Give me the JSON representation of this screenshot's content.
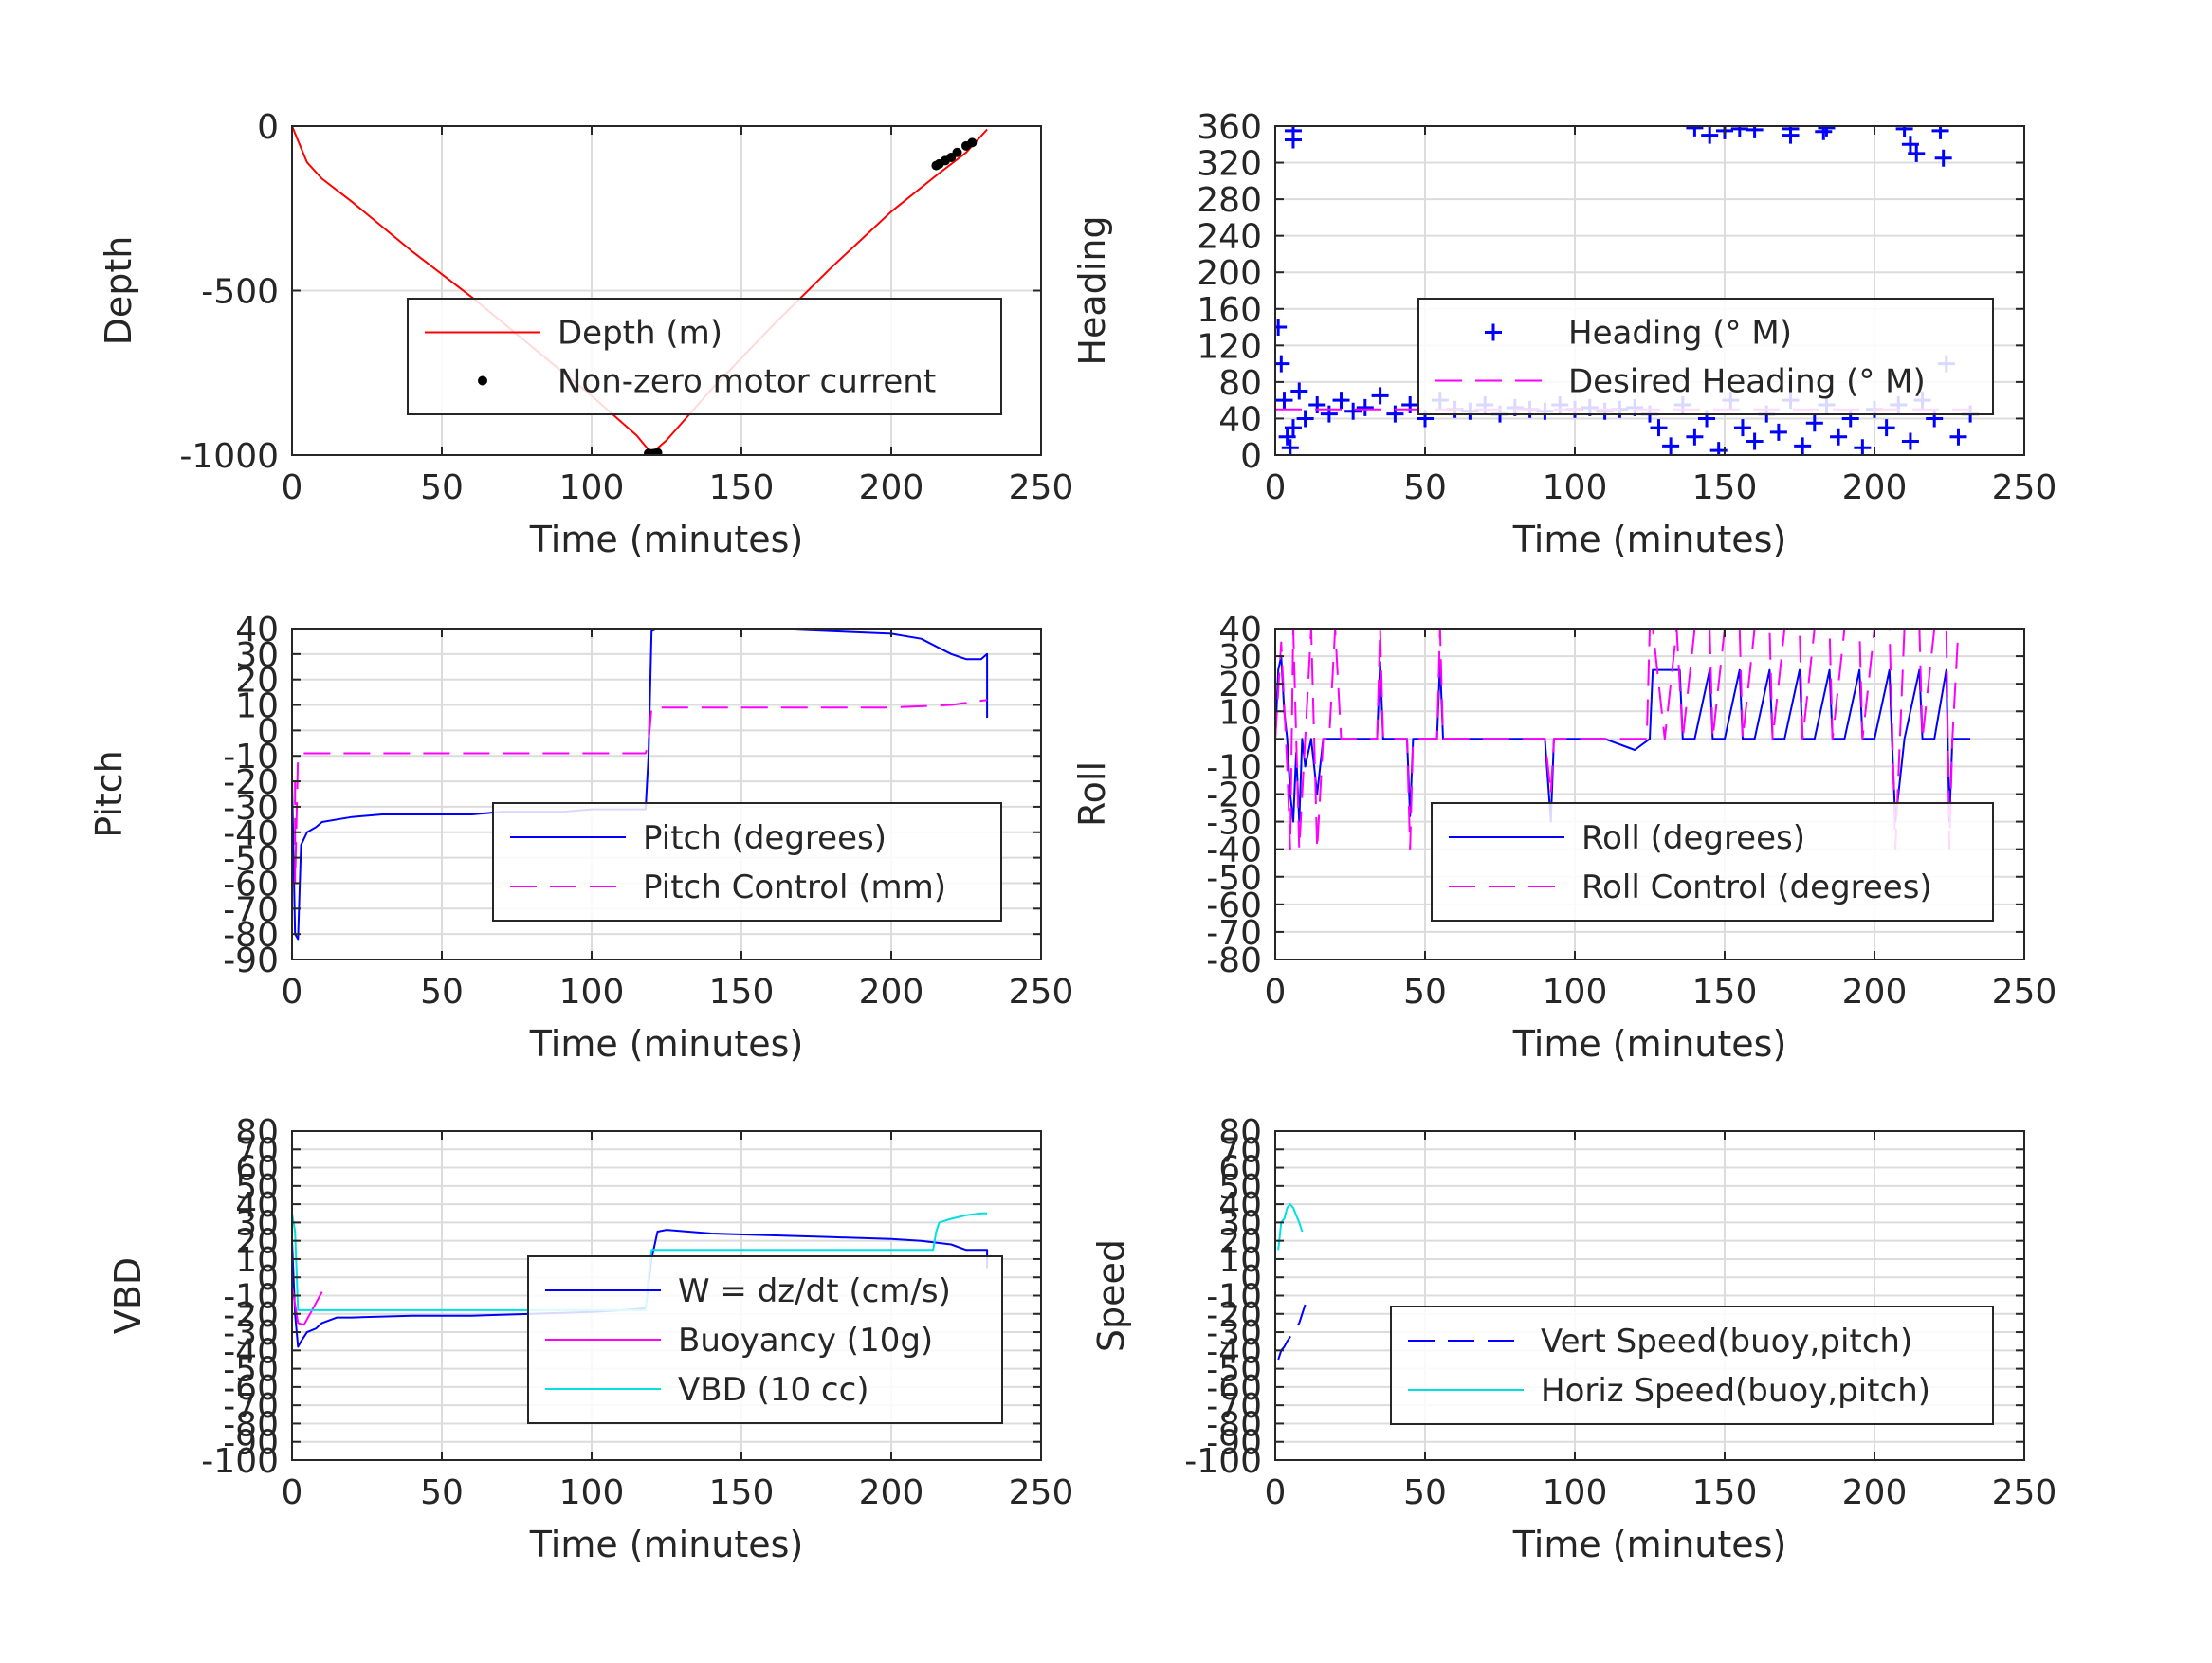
{
  "chart_data": [
    {
      "type": "line",
      "id": "depth",
      "xlabel": "Time (minutes)",
      "ylabel": "Depth",
      "xlim": [
        0,
        250
      ],
      "ylim": [
        -1000,
        0
      ],
      "xticks": [
        0,
        50,
        100,
        150,
        200,
        250
      ],
      "yticks": [
        -1000,
        -500,
        0
      ],
      "grid": true,
      "legend_position": "right-center",
      "series": [
        {
          "name": "Depth (m)",
          "color": "#ff0000",
          "style": "solid",
          "marker": "none",
          "x": [
            0,
            5,
            10,
            20,
            40,
            60,
            80,
            100,
            115,
            120,
            125,
            140,
            160,
            180,
            200,
            215,
            225,
            232
          ],
          "y": [
            0,
            -110,
            -160,
            -230,
            -380,
            -520,
            -670,
            -820,
            -940,
            -995,
            -955,
            -800,
            -610,
            -430,
            -260,
            -150,
            -80,
            -10
          ]
        },
        {
          "name": "Non-zero motor current",
          "color": "#000000",
          "style": "none",
          "marker": "dot",
          "x": [
            119,
            120,
            121,
            122,
            215,
            216,
            218,
            220,
            222,
            225,
            227
          ],
          "y": [
            -995,
            -996,
            -995,
            -993,
            -120,
            -115,
            -105,
            -95,
            -80,
            -60,
            -50
          ]
        }
      ]
    },
    {
      "type": "scatter",
      "id": "heading",
      "xlabel": "Time (minutes)",
      "ylabel": "Heading",
      "xlim": [
        0,
        250
      ],
      "ylim": [
        0,
        360
      ],
      "xticks": [
        0,
        50,
        100,
        150,
        200,
        250
      ],
      "yticks": [
        0,
        40,
        80,
        120,
        160,
        200,
        240,
        280,
        320,
        360
      ],
      "grid": true,
      "legend_position": "right-center",
      "series": [
        {
          "name": "Heading (° M)",
          "color": "#0000ff",
          "style": "none",
          "marker": "plus",
          "x": [
            1,
            2,
            3,
            4,
            5,
            6,
            8,
            10,
            14,
            18,
            22,
            26,
            30,
            35,
            40,
            45,
            50,
            55,
            60,
            65,
            70,
            75,
            80,
            85,
            90,
            95,
            100,
            105,
            110,
            115,
            120,
            125,
            128,
            132,
            136,
            140,
            144,
            148,
            152,
            156,
            160,
            164,
            168,
            172,
            176,
            180,
            184,
            188,
            192,
            196,
            200,
            204,
            208,
            212,
            216,
            220,
            224,
            228,
            232,
            6,
            6,
            140,
            145,
            150,
            155,
            160,
            172,
            172,
            183,
            184,
            210,
            212,
            214,
            222,
            223
          ],
          "y": [
            140,
            100,
            60,
            20,
            8,
            30,
            70,
            40,
            55,
            45,
            60,
            48,
            52,
            65,
            45,
            55,
            40,
            60,
            50,
            48,
            55,
            45,
            52,
            50,
            48,
            55,
            50,
            52,
            48,
            50,
            52,
            45,
            30,
            10,
            55,
            20,
            40,
            5,
            60,
            30,
            15,
            45,
            25,
            60,
            10,
            35,
            55,
            20,
            40,
            8,
            50,
            30,
            55,
            15,
            60,
            40,
            100,
            20,
            45,
            345,
            355,
            358,
            350,
            355,
            357,
            356,
            350,
            357,
            354,
            358,
            357,
            340,
            330,
            355,
            325
          ]
        },
        {
          "name": "Desired Heading (° M)",
          "color": "#ff00ff",
          "style": "dashed",
          "marker": "none",
          "x": [
            0,
            232
          ],
          "y": [
            50,
            50
          ]
        }
      ]
    },
    {
      "type": "line",
      "id": "pitch",
      "xlabel": "Time (minutes)",
      "ylabel": "Pitch",
      "xlim": [
        0,
        250
      ],
      "ylim": [
        -90,
        40
      ],
      "xticks": [
        0,
        50,
        100,
        150,
        200,
        250
      ],
      "yticks": [
        -90,
        -80,
        -70,
        -60,
        -50,
        -40,
        -30,
        -20,
        -10,
        0,
        10,
        20,
        30,
        40
      ],
      "grid": true,
      "legend_position": "right-center",
      "series": [
        {
          "name": "Pitch (degrees)",
          "color": "#0000ff",
          "style": "solid",
          "marker": "none",
          "x": [
            0,
            1,
            2,
            3,
            5,
            8,
            10,
            15,
            20,
            30,
            40,
            50,
            60,
            70,
            80,
            90,
            100,
            110,
            118,
            119,
            120,
            122,
            125,
            140,
            160,
            180,
            200,
            210,
            215,
            220,
            225,
            230,
            232,
            232
          ],
          "y": [
            -20,
            -80,
            -82,
            -45,
            -40,
            -38,
            -36,
            -35,
            -34,
            -33,
            -33,
            -33,
            -33,
            -32,
            -32,
            -32,
            -31,
            -31,
            -31,
            -10,
            39,
            40,
            40,
            40,
            40,
            39,
            38,
            36,
            33,
            30,
            28,
            28,
            30,
            5
          ]
        },
        {
          "name": "Pitch Control (mm)",
          "color": "#ff00ff",
          "style": "dashed",
          "marker": "none",
          "x": [
            0,
            1,
            1,
            2,
            3,
            20,
            60,
            100,
            118,
            119,
            120,
            122,
            150,
            200,
            220,
            232
          ],
          "y": [
            -20,
            -20,
            -60,
            -10,
            -9,
            -9,
            -9,
            -9,
            -9,
            -5,
            9,
            9,
            9,
            9,
            10,
            12
          ]
        }
      ]
    },
    {
      "type": "line",
      "id": "roll",
      "xlabel": "Time (minutes)",
      "ylabel": "Roll",
      "xlim": [
        0,
        250
      ],
      "ylim": [
        -80,
        40
      ],
      "xticks": [
        0,
        50,
        100,
        150,
        200,
        250
      ],
      "yticks": [
        -80,
        -70,
        -60,
        -50,
        -40,
        -30,
        -20,
        -10,
        0,
        10,
        20,
        30,
        40
      ],
      "grid": true,
      "legend_position": "right-center",
      "series": [
        {
          "name": "Roll (degrees)",
          "color": "#0000ff",
          "style": "solid",
          "marker": "none",
          "x": [
            0,
            1,
            2,
            3,
            4,
            5,
            6,
            7,
            8,
            9,
            10,
            12,
            14,
            16,
            18,
            20,
            22,
            25,
            30,
            34,
            35,
            36,
            40,
            44,
            45,
            46,
            50,
            54,
            55,
            56,
            60,
            70,
            80,
            90,
            92,
            93,
            94,
            100,
            110,
            120,
            125,
            126,
            130,
            135,
            136,
            140,
            145,
            146,
            150,
            155,
            156,
            160,
            165,
            166,
            170,
            175,
            176,
            180,
            185,
            186,
            190,
            195,
            196,
            200,
            205,
            206,
            207,
            210,
            215,
            216,
            220,
            224,
            225,
            226,
            228,
            232
          ],
          "y": [
            0,
            25,
            30,
            10,
            0,
            -20,
            -30,
            -5,
            -30,
            0,
            -10,
            0,
            -20,
            0,
            0,
            0,
            0,
            0,
            0,
            0,
            28,
            0,
            0,
            0,
            -28,
            0,
            0,
            0,
            28,
            0,
            0,
            0,
            0,
            0,
            -30,
            0,
            0,
            0,
            0,
            -4,
            0,
            25,
            25,
            25,
            0,
            0,
            25,
            0,
            0,
            25,
            0,
            0,
            25,
            0,
            0,
            25,
            0,
            0,
            25,
            0,
            0,
            25,
            0,
            0,
            25,
            -5,
            -30,
            0,
            25,
            0,
            0,
            25,
            -30,
            0,
            0,
            0
          ]
        },
        {
          "name": "Roll Control (degrees)",
          "color": "#ff00ff",
          "style": "dashed",
          "marker": "none",
          "x": [
            0,
            2,
            4,
            5,
            6,
            8,
            10,
            12,
            14,
            16,
            18,
            20,
            22,
            25,
            30,
            34,
            35,
            36,
            40,
            44,
            45,
            46,
            50,
            54,
            55,
            56,
            60,
            70,
            80,
            90,
            92,
            93,
            94,
            100,
            110,
            120,
            124,
            125,
            126,
            130,
            134,
            136,
            140,
            145,
            146,
            150,
            155,
            156,
            160,
            165,
            166,
            170,
            175,
            176,
            180,
            185,
            186,
            190,
            195,
            196,
            200,
            205,
            206,
            207,
            210,
            215,
            216,
            220,
            224,
            225,
            226,
            228,
            232
          ],
          "y": [
            0,
            35,
            -10,
            -40,
            40,
            -40,
            0,
            40,
            -40,
            0,
            0,
            40,
            0,
            0,
            0,
            0,
            40,
            0,
            0,
            0,
            -40,
            0,
            0,
            0,
            40,
            0,
            0,
            0,
            0,
            0,
            -20,
            0,
            0,
            0,
            0,
            0,
            0,
            40,
            40,
            0,
            40,
            0,
            40,
            40,
            0,
            40,
            40,
            0,
            40,
            40,
            0,
            40,
            40,
            0,
            40,
            40,
            0,
            40,
            40,
            0,
            40,
            40,
            0,
            -40,
            40,
            40,
            0,
            40,
            40,
            -40,
            0,
            40,
            40
          ]
        }
      ]
    },
    {
      "type": "line",
      "id": "vbd",
      "xlabel": "Time (minutes)",
      "ylabel": "VBD",
      "xlim": [
        0,
        250
      ],
      "ylim": [
        -100,
        80
      ],
      "xticks": [
        0,
        50,
        100,
        150,
        200,
        250
      ],
      "yticks": [
        -100,
        -90,
        -80,
        -70,
        -60,
        -50,
        -40,
        -30,
        -20,
        -10,
        0,
        10,
        20,
        30,
        40,
        50,
        60,
        70,
        80
      ],
      "yticklabels": [
        "-100",
        "-90",
        "-80",
        "-70",
        "-60",
        "-50",
        "-40",
        "-30",
        "-20",
        "-10",
        "0",
        "10",
        "20",
        "30",
        "40",
        "50",
        "60",
        "70",
        "80"
      ],
      "grid": true,
      "legend_position": "right-center",
      "series": [
        {
          "name": "W = dz/dt (cm/s)",
          "color": "#0000ff",
          "style": "solid",
          "marker": "none",
          "x": [
            0,
            1,
            2,
            3,
            5,
            8,
            10,
            15,
            20,
            40,
            60,
            80,
            100,
            110,
            118,
            120,
            122,
            125,
            140,
            160,
            180,
            200,
            210,
            220,
            225,
            230,
            232,
            232
          ],
          "y": [
            20,
            -20,
            -38,
            -35,
            -30,
            -28,
            -25,
            -22,
            -22,
            -21,
            -21,
            -20,
            -19,
            -18,
            -17,
            10,
            25,
            26,
            24,
            23,
            22,
            21,
            20,
            18,
            15,
            15,
            15,
            5
          ]
        },
        {
          "name": "Buoyancy (10g)",
          "color": "#ff00ff",
          "style": "solid",
          "marker": "none",
          "x": [
            0,
            1,
            2,
            4,
            6,
            8,
            10
          ],
          "y": [
            -5,
            -15,
            -25,
            -26,
            -20,
            -14,
            -8
          ]
        },
        {
          "name": "VBD (10 cc)",
          "color": "#00e0e0",
          "style": "solid",
          "marker": "none",
          "x": [
            0,
            1,
            2,
            3,
            50,
            100,
            118,
            119,
            120,
            200,
            214,
            215,
            216,
            220,
            225,
            230,
            232
          ],
          "y": [
            35,
            25,
            -18,
            -18,
            -18,
            -18,
            -18,
            0,
            15,
            15,
            15,
            25,
            30,
            32,
            34,
            35,
            35
          ]
        }
      ]
    },
    {
      "type": "line",
      "id": "speed",
      "xlabel": "Time (minutes)",
      "ylabel": "Speed",
      "xlim": [
        0,
        250
      ],
      "ylim": [
        -100,
        80
      ],
      "xticks": [
        0,
        50,
        100,
        150,
        200,
        250
      ],
      "yticks": [
        -100,
        -90,
        -80,
        -70,
        -60,
        -50,
        -40,
        -30,
        -20,
        -10,
        0,
        10,
        20,
        30,
        40,
        50,
        60,
        70,
        80
      ],
      "yticklabels": [
        "-100",
        "-90",
        "-80",
        "-70",
        "-60",
        "-50",
        "-40",
        "-30",
        "-20",
        "-10",
        "0",
        "10",
        "20",
        "30",
        "40",
        "50",
        "60",
        "70",
        "80"
      ],
      "grid": true,
      "legend_position": "right-bottom",
      "series": [
        {
          "name": "Vert Speed(buoy,pitch)",
          "color": "#0000ff",
          "style": "dashed",
          "marker": "none",
          "x": [
            1,
            2,
            3,
            4,
            6,
            8,
            10
          ],
          "y": [
            -45,
            -40,
            -38,
            -35,
            -30,
            -25,
            -15
          ]
        },
        {
          "name": "Horiz Speed(buoy,pitch)",
          "color": "#00e0e0",
          "style": "solid",
          "marker": "none",
          "x": [
            1,
            2,
            3,
            4,
            5,
            6,
            7,
            8,
            9
          ],
          "y": [
            15,
            30,
            32,
            38,
            40,
            38,
            34,
            30,
            25
          ]
        }
      ]
    }
  ]
}
